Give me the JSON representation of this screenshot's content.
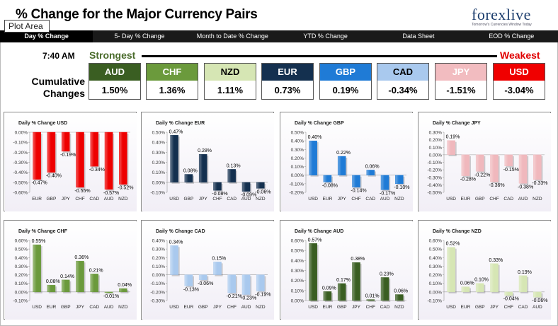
{
  "header": {
    "title": "% Change for the Major Currency Pairs",
    "logo_text": "forexlive",
    "logo_tagline": "Tomorrow's Currencies Window Today",
    "tooltip": "Plot Area"
  },
  "tabs": [
    "Day % Change",
    "5- Day % Change",
    "Month to Date % Change",
    "YTD % Change",
    "Data Sheet",
    "EOD % Change"
  ],
  "summary": {
    "time": "7:40 AM",
    "strongest_label": "Strongest",
    "weakest_label": "Weakest",
    "cumulative_label_1": "Cumulative",
    "cumulative_label_2": "Changes",
    "currencies": [
      {
        "name": "AUD",
        "value": "1.50%",
        "color": "#3a5e22",
        "text_color": "#ffffff"
      },
      {
        "name": "CHF",
        "value": "1.36%",
        "color": "#6b9a3c",
        "text_color": "#ffffff"
      },
      {
        "name": "NZD",
        "value": "1.11%",
        "color": "#d6e6b4",
        "text_color": "#000000"
      },
      {
        "name": "EUR",
        "value": "0.73%",
        "color": "#14304f",
        "text_color": "#ffffff"
      },
      {
        "name": "GBP",
        "value": "0.19%",
        "color": "#1f7bd6",
        "text_color": "#ffffff"
      },
      {
        "name": "CAD",
        "value": "-0.34%",
        "color": "#a9c9ee",
        "text_color": "#000000"
      },
      {
        "name": "JPY",
        "value": "-1.51%",
        "color": "#f2bcc0",
        "text_color": "#ffffff"
      },
      {
        "name": "USD",
        "value": "-3.04%",
        "color": "#f00000",
        "text_color": "#ffffff"
      }
    ]
  },
  "chart_data": [
    {
      "type": "bar",
      "title": "Daily % Change USD",
      "categories": [
        "EUR",
        "GBP",
        "JPY",
        "CHF",
        "CAD",
        "AUD",
        "NZD"
      ],
      "values": [
        -0.47,
        -0.4,
        -0.19,
        -0.55,
        -0.34,
        -0.57,
        -0.52
      ],
      "labels": [
        "-0.47%",
        "-0.40%",
        "-0.19%",
        "-0.55%",
        "-0.34%",
        "-0.57%",
        "-0.52%"
      ],
      "yticks": [
        "0.00%",
        "-0.10%",
        "-0.20%",
        "-0.30%",
        "-0.40%",
        "-0.50%",
        "-0.60%"
      ],
      "ylim": [
        -0.6,
        0
      ],
      "color": "#ee0000"
    },
    {
      "type": "bar",
      "title": "Daily % Change EUR",
      "categories": [
        "USD",
        "GBP",
        "JPY",
        "CHF",
        "CAD",
        "AUD",
        "NZD"
      ],
      "values": [
        0.47,
        0.08,
        0.28,
        -0.08,
        0.13,
        -0.09,
        -0.06
      ],
      "labels": [
        "0.47%",
        "0.08%",
        "0.28%",
        "-0.08%",
        "0.13%",
        "-0.09%",
        "-0.06%"
      ],
      "yticks": [
        "0.50%",
        "0.40%",
        "0.30%",
        "0.20%",
        "0.10%",
        "0.00%",
        "-0.10%"
      ],
      "ylim": [
        -0.1,
        0.5
      ],
      "color": "#14304f"
    },
    {
      "type": "bar",
      "title": "Daily % Change GBP",
      "categories": [
        "USD",
        "EUR",
        "JPY",
        "CHF",
        "CAD",
        "AUD",
        "NZD"
      ],
      "values": [
        0.4,
        -0.08,
        0.22,
        -0.14,
        0.06,
        -0.17,
        -0.1
      ],
      "labels": [
        "0.40%",
        "-0.08%",
        "0.22%",
        "-0.14%",
        "0.06%",
        "-0.17%",
        "-0.10%"
      ],
      "yticks": [
        "0.50%",
        "0.40%",
        "0.30%",
        "0.20%",
        "0.10%",
        "0.00%",
        "-0.10%",
        "-0.20%"
      ],
      "ylim": [
        -0.2,
        0.5
      ],
      "color": "#1f7bd6"
    },
    {
      "type": "bar",
      "title": "Daily % Change JPY",
      "categories": [
        "USD",
        "EUR",
        "GBP",
        "CHF",
        "CAD",
        "AUD",
        "NZD"
      ],
      "values": [
        0.19,
        -0.28,
        -0.22,
        -0.36,
        -0.15,
        -0.38,
        -0.33
      ],
      "labels": [
        "0.19%",
        "-0.28%",
        "-0.22%",
        "-0.36%",
        "-0.15%",
        "-0.38%",
        "-0.33%"
      ],
      "yticks": [
        "0.30%",
        "0.20%",
        "0.10%",
        "0.00%",
        "-0.10%",
        "-0.20%",
        "-0.30%",
        "-0.40%",
        "-0.50%"
      ],
      "ylim": [
        -0.5,
        0.3
      ],
      "color": "#f0b8bd"
    },
    {
      "type": "bar",
      "title": "Daily % Change CHF",
      "categories": [
        "USD",
        "EUR",
        "GBP",
        "JPY",
        "CAD",
        "AUD",
        "NZD"
      ],
      "values": [
        0.55,
        0.08,
        0.14,
        0.36,
        0.21,
        -0.01,
        0.04
      ],
      "labels": [
        "0.55%",
        "0.08%",
        "0.14%",
        "0.36%",
        "0.21%",
        "-0.01%",
        "0.04%"
      ],
      "yticks": [
        "0.60%",
        "0.50%",
        "0.40%",
        "0.30%",
        "0.20%",
        "0.10%",
        "0.00%",
        "-0.10%"
      ],
      "ylim": [
        -0.1,
        0.6
      ],
      "color": "#6b9a3c"
    },
    {
      "type": "bar",
      "title": "Daily % Change CAD",
      "categories": [
        "USD",
        "EUR",
        "GBP",
        "JPY",
        "CHF",
        "AUD",
        "NZD"
      ],
      "values": [
        0.34,
        -0.13,
        -0.06,
        0.15,
        -0.21,
        -0.23,
        -0.19
      ],
      "labels": [
        "0.34%",
        "-0.13%",
        "-0.06%",
        "0.15%",
        "-0.21%",
        "-0.23%",
        "-0.19%"
      ],
      "yticks": [
        "0.40%",
        "0.30%",
        "0.20%",
        "0.10%",
        "0.00%",
        "-0.10%",
        "-0.20%",
        "-0.30%"
      ],
      "ylim": [
        -0.3,
        0.4
      ],
      "color": "#a9c9ee"
    },
    {
      "type": "bar",
      "title": "Daily % Change AUD",
      "categories": [
        "USD",
        "EUR",
        "GBP",
        "JPY",
        "CHF",
        "CAD",
        "NZD"
      ],
      "values": [
        0.57,
        0.09,
        0.17,
        0.38,
        0.01,
        0.23,
        0.06
      ],
      "labels": [
        "0.57%",
        "0.09%",
        "0.17%",
        "0.38%",
        "0.01%",
        "0.23%",
        "0.06%"
      ],
      "yticks": [
        "0.60%",
        "0.50%",
        "0.40%",
        "0.30%",
        "0.20%",
        "0.10%",
        "0.00%"
      ],
      "ylim": [
        0,
        0.6
      ],
      "color": "#3a5e22"
    },
    {
      "type": "bar",
      "title": "Daily % Change NZD",
      "categories": [
        "USD",
        "EUR",
        "GBP",
        "JPY",
        "CHF",
        "CAD",
        "AUD"
      ],
      "values": [
        0.52,
        0.06,
        0.1,
        0.33,
        -0.04,
        0.19,
        -0.06
      ],
      "labels": [
        "0.52%",
        "0.06%",
        "0.10%",
        "0.33%",
        "-0.04%",
        "0.19%",
        "-0.06%"
      ],
      "yticks": [
        "0.60%",
        "0.50%",
        "0.40%",
        "0.30%",
        "0.20%",
        "0.10%",
        "0.00%",
        "-0.10%"
      ],
      "ylim": [
        -0.1,
        0.6
      ],
      "color": "#d6e6b4"
    }
  ]
}
